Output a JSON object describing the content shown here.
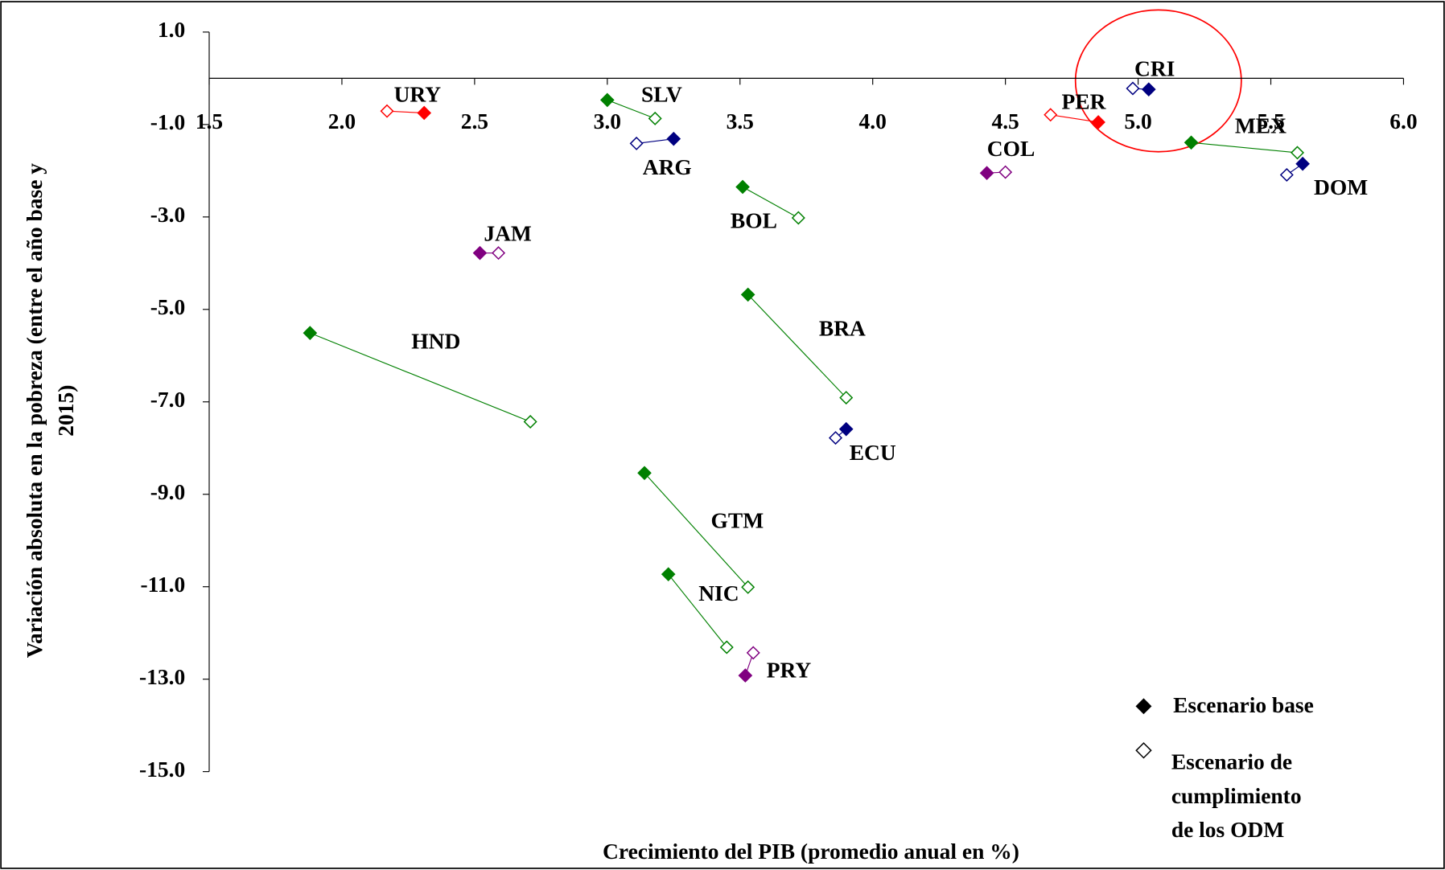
{
  "chart_data": {
    "type": "scatter",
    "x_label": "Crecimiento del PIB (promedio anual en %)",
    "y_label": [
      "Variación absoluta en la pobreza (entre el año base y",
      "2015)"
    ],
    "categories": [
      "URY",
      "SLV",
      "ARG",
      "CRI",
      "PER",
      "MEX",
      "DOM",
      "COL",
      "BOL",
      "JAM",
      "BRA",
      "HND",
      "ECU",
      "GTM",
      "NIC",
      "PRY"
    ],
    "colors": [
      "#ff0000",
      "#008000",
      "#000080",
      "#000080",
      "#ff0000",
      "#008000",
      "#000080",
      "#800080",
      "#008000",
      "#800080",
      "#008000",
      "#008000",
      "#000080",
      "#008000",
      "#008000",
      "#800080"
    ],
    "series": [
      {
        "name": "Escenario base",
        "marker": "filled",
        "x": [
          2.31,
          3.0,
          3.25,
          5.04,
          4.85,
          5.2,
          5.62,
          4.43,
          3.51,
          2.52,
          3.53,
          1.88,
          3.9,
          3.14,
          3.23,
          3.52
        ],
        "values": [
          -0.75,
          -0.47,
          -1.31,
          -0.24,
          -0.95,
          -1.39,
          -1.85,
          -2.05,
          -2.35,
          -3.78,
          -4.68,
          -5.51,
          -7.59,
          -8.54,
          -10.73,
          -12.92
        ]
      },
      {
        "name": "Escenario de cumplimiento de los ODM",
        "marker": "open",
        "x": [
          2.17,
          3.18,
          3.11,
          4.98,
          4.67,
          5.6,
          5.56,
          4.5,
          3.72,
          2.59,
          3.9,
          2.71,
          3.86,
          3.53,
          3.45,
          3.55
        ],
        "values": [
          -0.71,
          -0.87,
          -1.41,
          -0.22,
          -0.79,
          -1.61,
          -2.09,
          -2.03,
          -3.02,
          -3.78,
          -6.91,
          -7.43,
          -7.78,
          -11.01,
          -12.31,
          -12.43
        ]
      }
    ],
    "xlim": [
      1.5,
      6.0
    ],
    "xticks": [
      1.5,
      {
        "value": 2,
        "label": "2.0"
      },
      2.5,
      {
        "value": 3,
        "label": "3.0"
      },
      3.5,
      {
        "value": 4,
        "label": "4.0"
      },
      4.5,
      {
        "value": 5,
        "label": "5.0"
      },
      5.5,
      {
        "value": 6,
        "label": "6.0"
      }
    ],
    "ylim": [
      -15,
      1
    ],
    "yticks": [
      {
        "value": 1,
        "label": "1.0"
      },
      {
        "value": -1,
        "label": "-1.0"
      },
      {
        "value": -3,
        "label": "-3.0"
      },
      {
        "value": -5,
        "label": "-5.0"
      },
      {
        "value": -7,
        "label": "-7.0"
      },
      {
        "value": -9,
        "label": "-9.0"
      },
      {
        "value": -11,
        "label": "-11.0"
      },
      {
        "value": -13,
        "label": "-13.0"
      },
      {
        "value": -15,
        "label": "-15.0"
      }
    ],
    "grid": false
  }
}
